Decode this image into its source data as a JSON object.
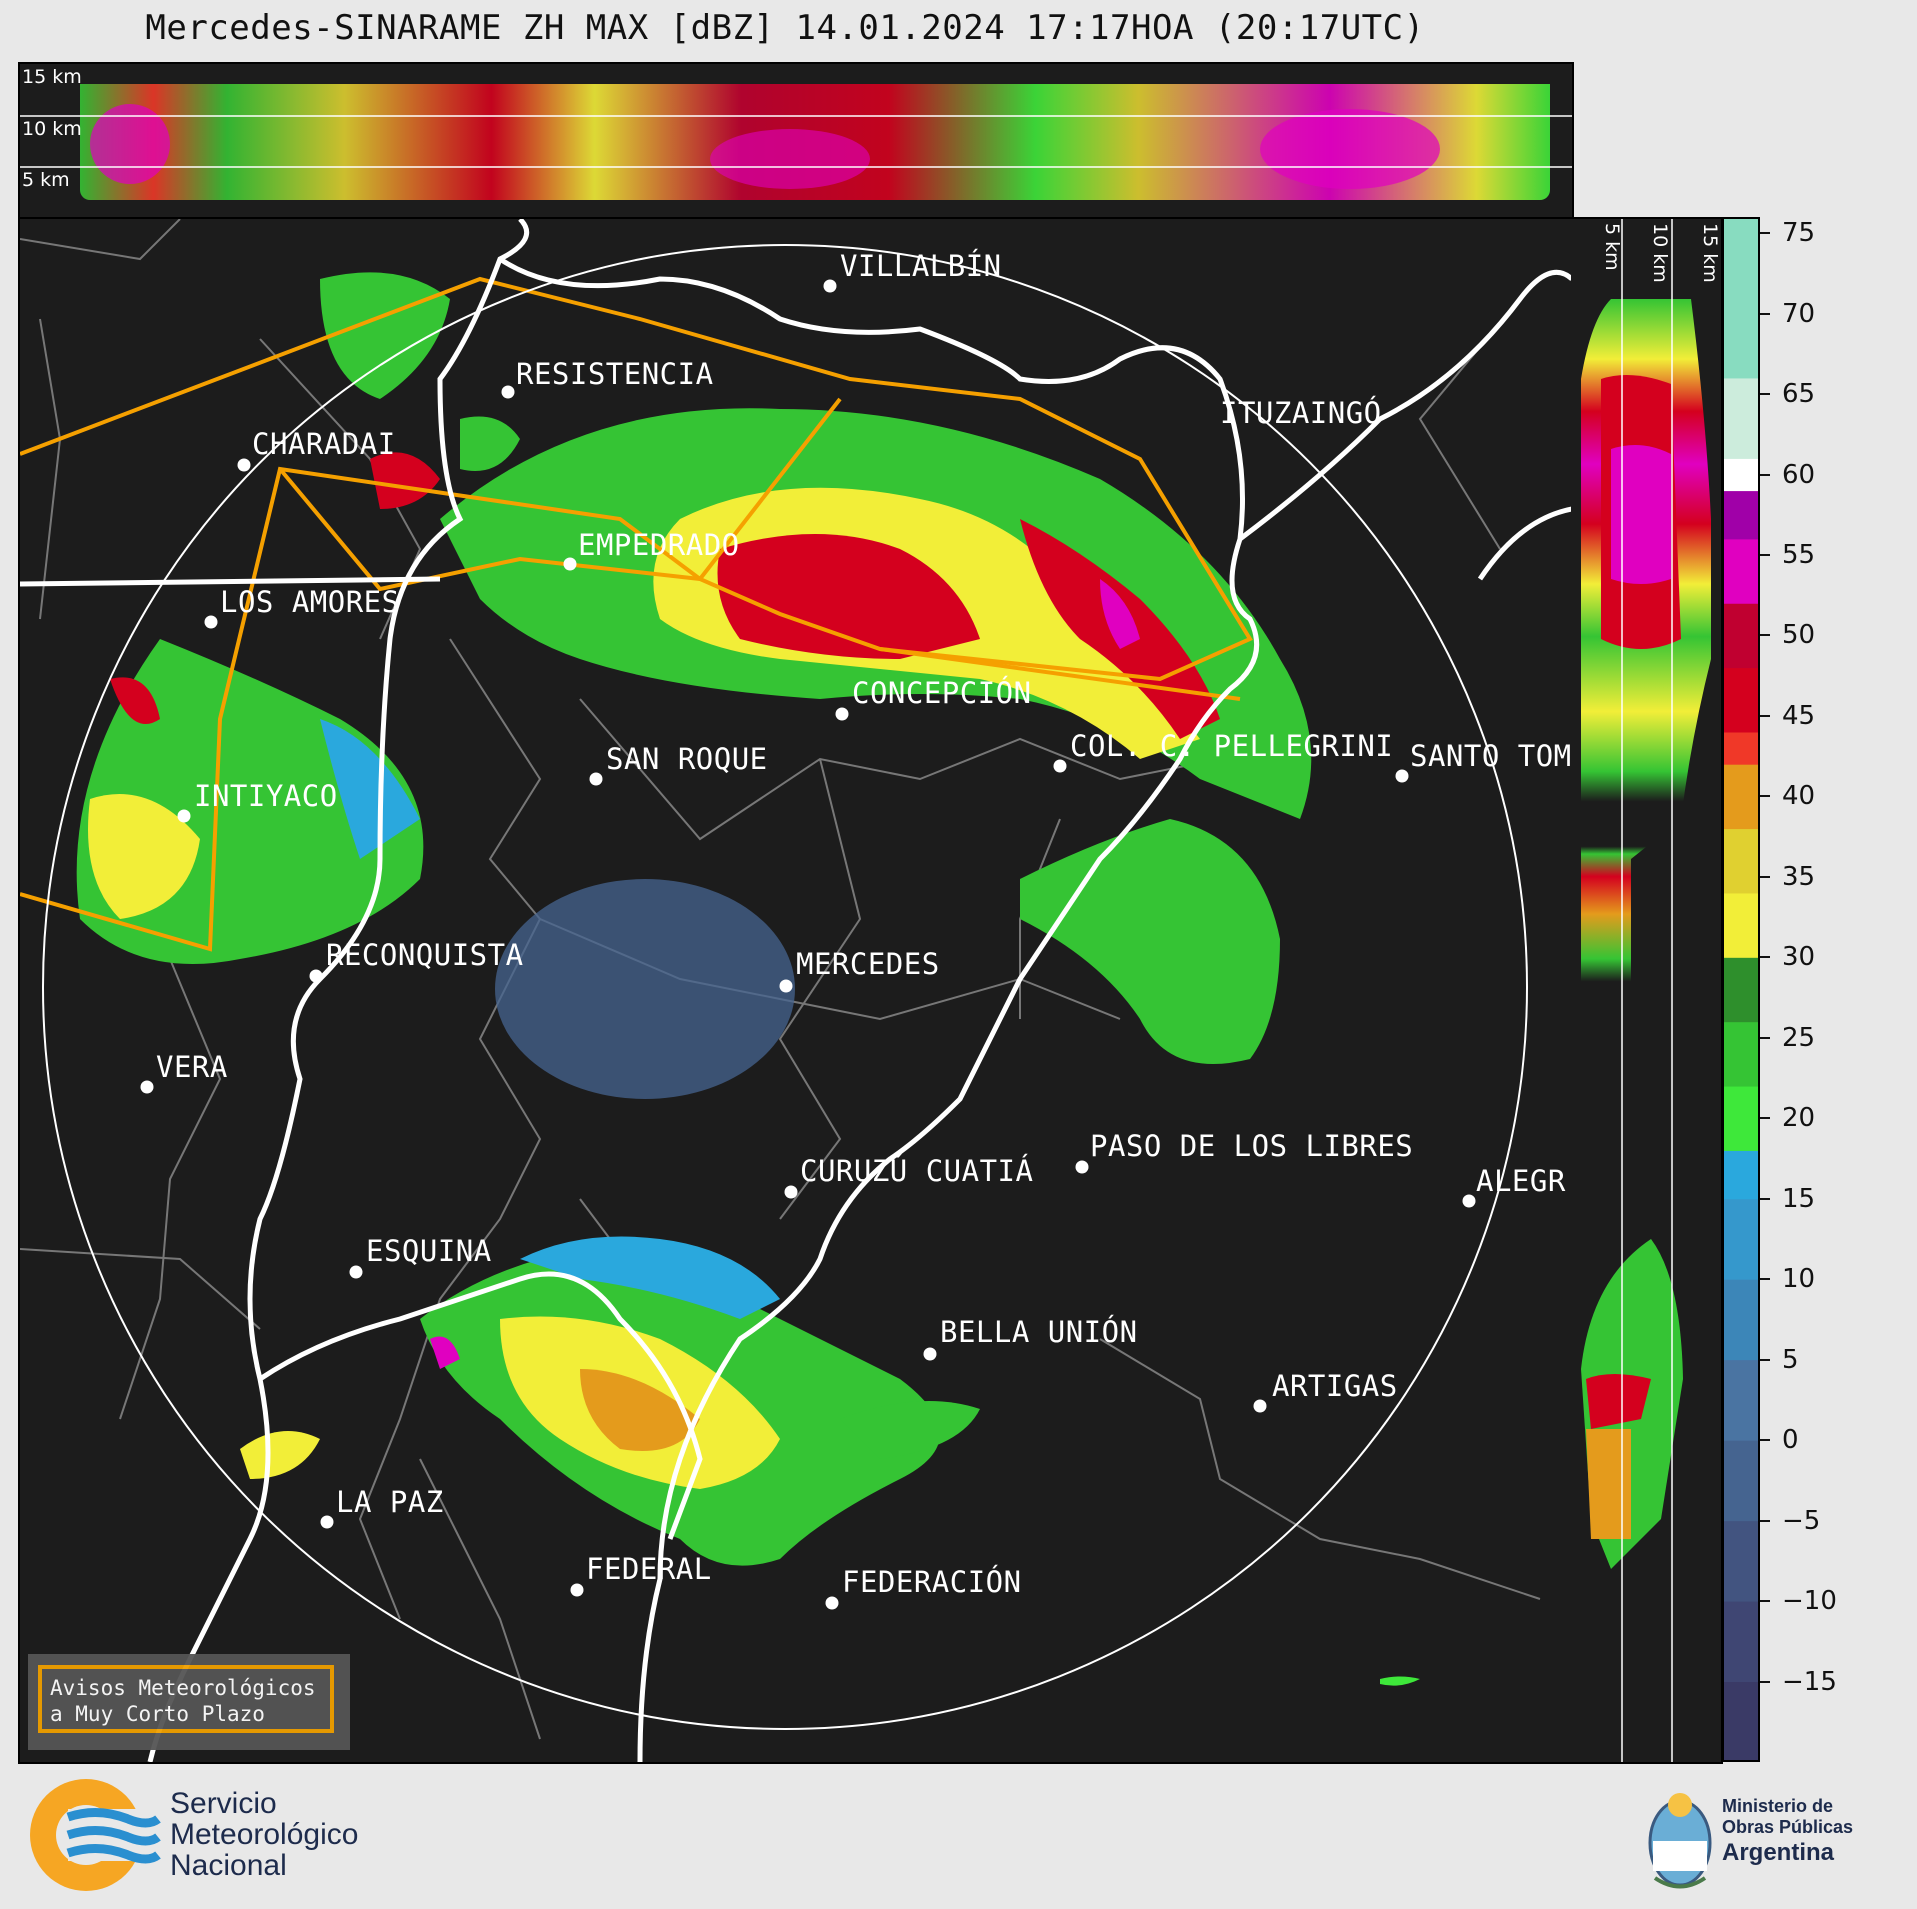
{
  "title": "Mercedes-SINARAME ZH MAX [dBZ] 14.01.2024 17:17HOA (20:17UTC)",
  "top_panel": {
    "altitude_labels": [
      "15 km",
      "10 km",
      "5 km"
    ]
  },
  "side_panel": {
    "altitude_labels": [
      "5 km",
      "10 km",
      "15 km"
    ]
  },
  "colorbar": {
    "unit": "dBZ",
    "min": -20,
    "max": 76,
    "ticks": [
      "75",
      "70",
      "65",
      "60",
      "55",
      "50",
      "45",
      "40",
      "35",
      "30",
      "25",
      "20",
      "15",
      "10",
      "5",
      "0",
      "−5",
      "−10",
      "−15"
    ],
    "tick_values": [
      75,
      70,
      65,
      60,
      55,
      50,
      45,
      40,
      35,
      30,
      25,
      20,
      15,
      10,
      5,
      0,
      -5,
      -10,
      -15
    ],
    "color_stops": [
      {
        "from": -20,
        "to": -15,
        "color": "#3a3a66"
      },
      {
        "from": -15,
        "to": -10,
        "color": "#3f4673"
      },
      {
        "from": -10,
        "to": -5,
        "color": "#425480"
      },
      {
        "from": -5,
        "to": 0,
        "color": "#456490"
      },
      {
        "from": 0,
        "to": 5,
        "color": "#4a74a2"
      },
      {
        "from": 5,
        "to": 10,
        "color": "#3c86b8"
      },
      {
        "from": 10,
        "to": 15,
        "color": "#3598cc"
      },
      {
        "from": 15,
        "to": 18,
        "color": "#2aa8dd"
      },
      {
        "from": 18,
        "to": 22,
        "color": "#3ee83a"
      },
      {
        "from": 22,
        "to": 26,
        "color": "#35c434"
      },
      {
        "from": 26,
        "to": 30,
        "color": "#2e8f2c"
      },
      {
        "from": 30,
        "to": 34,
        "color": "#f2ee38"
      },
      {
        "from": 34,
        "to": 38,
        "color": "#e0d030"
      },
      {
        "from": 38,
        "to": 42,
        "color": "#e49b1c"
      },
      {
        "from": 42,
        "to": 44,
        "color": "#f03828"
      },
      {
        "from": 44,
        "to": 48,
        "color": "#d4001e"
      },
      {
        "from": 48,
        "to": 52,
        "color": "#c00030"
      },
      {
        "from": 52,
        "to": 56,
        "color": "#e000c0"
      },
      {
        "from": 56,
        "to": 59,
        "color": "#a000a8"
      },
      {
        "from": 59,
        "to": 61,
        "color": "#ffffff"
      },
      {
        "from": 61,
        "to": 66,
        "color": "#ccecdc"
      },
      {
        "from": 66,
        "to": 76,
        "color": "#88dcc0"
      }
    ]
  },
  "cities": [
    {
      "name": "VILLALBÍN"
    },
    {
      "name": "RESISTENCIA"
    },
    {
      "name": "CHARADAI"
    },
    {
      "name": "ITUZAINGÓ"
    },
    {
      "name": "EMPEDRADO"
    },
    {
      "name": "LOS AMORES"
    },
    {
      "name": "CONCEPCIÓN"
    },
    {
      "name": "COL. C. PELLEGRINI"
    },
    {
      "name": "SANTO TOM"
    },
    {
      "name": "SAN ROQUE"
    },
    {
      "name": "INTIYACO"
    },
    {
      "name": "MERCEDES"
    },
    {
      "name": "RECONQUISTA"
    },
    {
      "name": "VERA"
    },
    {
      "name": "PASO DE LOS LIBRES"
    },
    {
      "name": "CURUZÚ CUATIÁ"
    },
    {
      "name": "ALEGR"
    },
    {
      "name": "ESQUINA"
    },
    {
      "name": "BELLA UNIÓN"
    },
    {
      "name": "ARTIGAS"
    },
    {
      "name": "LA PAZ"
    },
    {
      "name": "FEDERAL"
    },
    {
      "name": "FEDERACIÓN"
    }
  ],
  "warnings_box": {
    "text": "Avisos Meteorológicos\na Muy Corto Plazo",
    "border_color": "#f0a000"
  },
  "footer": {
    "smn_lines": [
      "Servicio",
      "Meteorológico",
      "Nacional"
    ],
    "ministry_lines": [
      "Ministerio de",
      "Obras Públicas",
      "Argentina"
    ]
  },
  "colors": {
    "background": "#e8e8e8",
    "map_background": "#1c1c1c",
    "warning_polygon": "#f5a000",
    "boundaries": "#ffffff",
    "minor_boundaries": "#777777"
  }
}
